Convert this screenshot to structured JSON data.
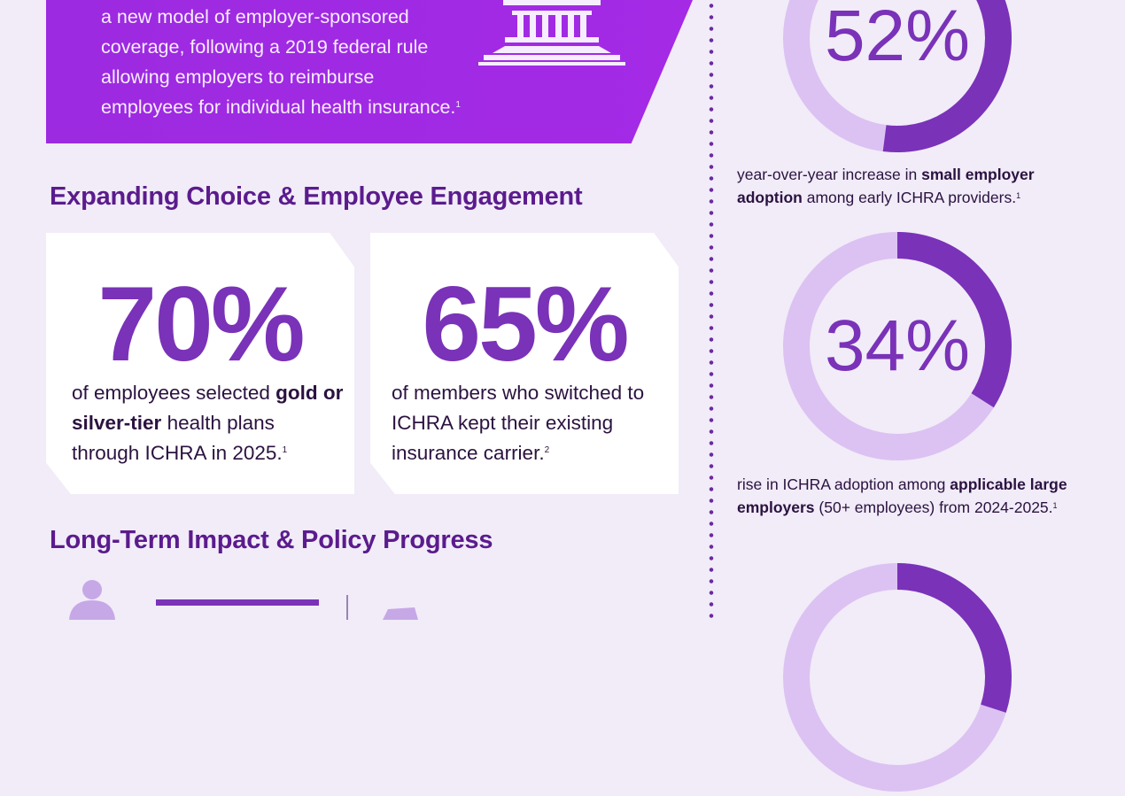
{
  "banner": {
    "lines": [
      "a new model of employer-sponsored",
      "coverage, following a 2019 federal rule",
      "allowing employers to reimburse",
      "employees for individual health insurance."
    ],
    "footnote": "1",
    "icon": "capitol-building-icon"
  },
  "sections": {
    "choice_title": "Expanding Choice & Employee Engagement",
    "impact_title": "Long-Term Impact & Policy Progress"
  },
  "cards": [
    {
      "big": "70%",
      "pre": "of employees selected ",
      "bold": "gold or silver-tier",
      "post": " health plans through ICHRA in 2025.",
      "footnote": "1"
    },
    {
      "big": "65%",
      "pre": "of members who switched to ICHRA kept their existing insurance carrier.",
      "bold": "",
      "post": "",
      "footnote": "2"
    }
  ],
  "stats": [
    {
      "value": "52%",
      "fraction": 0.52,
      "pre": "year-over-year increase in ",
      "bold": "small employer adoption",
      "post": " among early ICHRA providers.",
      "footnote": "1"
    },
    {
      "value": "34%",
      "fraction": 0.34,
      "pre": "rise in ICHRA adoption among ",
      "bold": "applicable large employers",
      "post": " (50+ employees) from 2024-2025.",
      "footnote": "1"
    },
    {
      "value": "",
      "fraction": 0.3
    }
  ],
  "colors": {
    "accent": "#7a32b8",
    "ring_light": "#dcc2f2",
    "banner": "#a42ae6",
    "background": "#f1ecf8",
    "title": "#5b1b8d"
  },
  "icons": [
    "capitol-building-icon",
    "person-icon",
    "document-icon"
  ]
}
